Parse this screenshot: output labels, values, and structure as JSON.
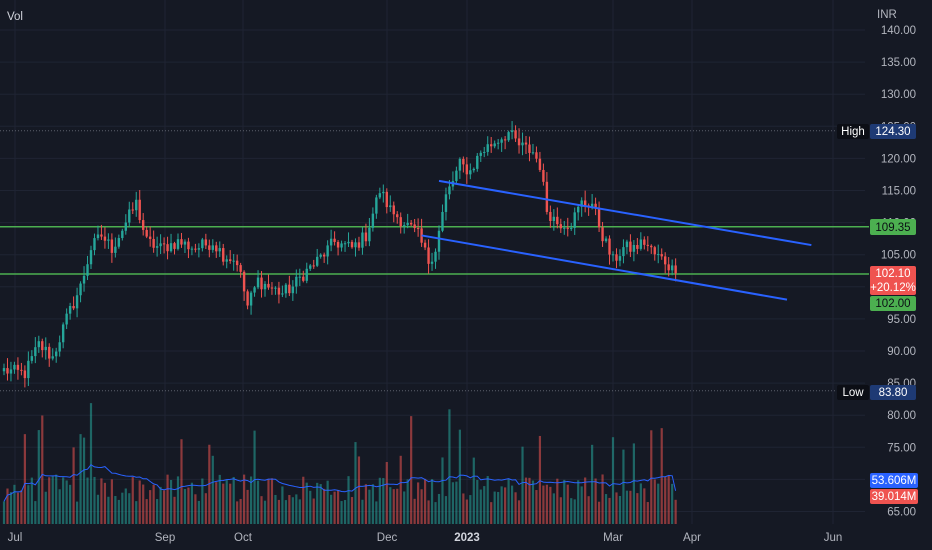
{
  "indicator_label": "Vol",
  "currency_label": "INR",
  "colors": {
    "background": "#151924",
    "grid": "#1f2433",
    "up": "#26a69a",
    "down": "#ef5350",
    "level_line": "#4caf50",
    "channel": "#2962ff",
    "volume_ma": "#2962ff",
    "axis_text": "#b2b5be"
  },
  "tags": {
    "high_label": "High",
    "high_value": "124.30",
    "low_label": "Low",
    "low_value": "83.80",
    "resistance_value": "109.35",
    "last_price": "102.10",
    "change_pct": "+20.12%",
    "support_value": "102.00",
    "volume_ma_value": "53.606M",
    "volume_value": "39.014M"
  },
  "chart_data": {
    "type": "candlestick",
    "y_ticks": [
      "140.00",
      "135.00",
      "130.00",
      "125.00",
      "120.00",
      "115.00",
      "110.00",
      "105.00",
      "100.00",
      "95.00",
      "90.00",
      "85.00",
      "80.00",
      "75.00",
      "70.00",
      "65.00"
    ],
    "x_ticks": [
      {
        "label": "Jul",
        "bold": false
      },
      {
        "label": "Sep",
        "bold": false
      },
      {
        "label": "Oct",
        "bold": false
      },
      {
        "label": "Dec",
        "bold": false
      },
      {
        "label": "2023",
        "bold": true
      },
      {
        "label": "Mar",
        "bold": false
      },
      {
        "label": "Apr",
        "bold": false
      },
      {
        "label": "Jun",
        "bold": false
      }
    ],
    "price_range": [
      64,
      141
    ],
    "high": 124.3,
    "low": 83.8,
    "last": 102.1,
    "horizontal_levels": [
      109.35,
      102.0
    ],
    "trend_channel": {
      "upper": {
        "start": [
          125,
          116.5
        ],
        "end": [
          232,
          106.5
        ]
      },
      "lower": {
        "start": [
          120,
          108.0
        ],
        "end": [
          225,
          98.0
        ]
      }
    },
    "ohlc_anchors": [
      [
        0,
        87
      ],
      [
        6,
        86.5
      ],
      [
        10,
        91
      ],
      [
        14,
        89
      ],
      [
        18,
        95
      ],
      [
        22,
        100
      ],
      [
        25,
        106
      ],
      [
        28,
        108
      ],
      [
        31,
        106
      ],
      [
        35,
        110
      ],
      [
        38,
        113
      ],
      [
        41,
        107
      ],
      [
        45,
        106
      ],
      [
        50,
        107
      ],
      [
        55,
        106
      ],
      [
        60,
        107
      ],
      [
        63,
        105
      ],
      [
        67,
        104
      ],
      [
        70,
        97
      ],
      [
        73,
        101
      ],
      [
        76,
        100
      ],
      [
        80,
        99
      ],
      [
        83,
        100
      ],
      [
        86,
        102
      ],
      [
        90,
        104
      ],
      [
        95,
        107
      ],
      [
        100,
        106
      ],
      [
        104,
        108
      ],
      [
        108,
        115
      ],
      [
        111,
        112
      ],
      [
        115,
        110
      ],
      [
        119,
        108
      ],
      [
        122,
        104
      ],
      [
        124,
        106
      ],
      [
        127,
        114
      ],
      [
        131,
        119
      ],
      [
        134,
        118
      ],
      [
        137,
        121
      ],
      [
        142,
        123
      ],
      [
        145,
        124
      ],
      [
        148,
        122
      ],
      [
        152,
        121
      ],
      [
        154,
        119
      ],
      [
        156,
        112
      ],
      [
        159,
        110
      ],
      [
        163,
        110
      ],
      [
        166,
        113
      ],
      [
        169,
        113
      ],
      [
        172,
        108
      ],
      [
        175,
        104
      ],
      [
        178,
        106
      ],
      [
        181,
        106
      ],
      [
        184,
        107
      ],
      [
        187,
        105
      ],
      [
        190,
        104
      ],
      [
        193,
        102.1
      ]
    ],
    "volume_range_M": [
      0,
      200
    ],
    "volume_ma_M": 53.606,
    "last_volume_M": 39.014
  }
}
